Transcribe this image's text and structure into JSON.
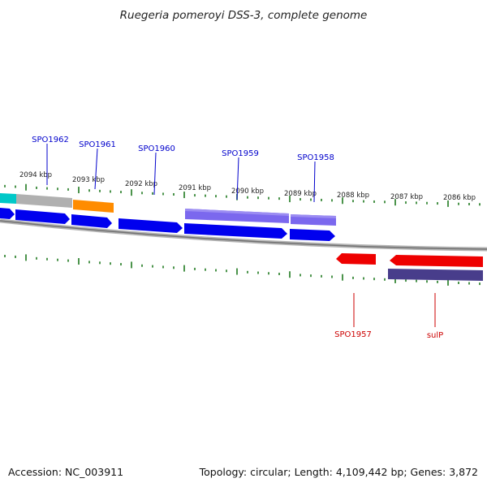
{
  "title": "Ruegeria pomeroyi DSS-3, complete genome",
  "footer": {
    "accession": "Accession: NC_003911",
    "summary": "Topology: circular; Length: 4,109,442 bp; Genes: 3,872"
  },
  "colors": {
    "tick": "#1f7a1f",
    "forward_label": "#0000cc",
    "reverse_label": "#cc0000",
    "backbone": "#8c8c8c",
    "blue_cds": "#0000ee",
    "purple_cds": "#7b68ee",
    "red_cds": "#ee0000",
    "dark_purple_cds": "#483d8b",
    "orange": "#ff8c00",
    "cyan": "#00c8c8",
    "gray": "#b0b0b0"
  },
  "scale_labels": [
    "2094 kbp",
    "2093 kbp",
    "2092 kbp",
    "2091 kbp",
    "2090 kbp",
    "2089 kbp",
    "2088 kbp",
    "2087 kbp",
    "2086 kbp"
  ],
  "gene_labels_forward": [
    "SPO1962",
    "SPO1961",
    "SPO1960",
    "SPO1959",
    "SPO1958"
  ],
  "gene_labels_reverse": [
    "SPO1957",
    "sulP"
  ]
}
